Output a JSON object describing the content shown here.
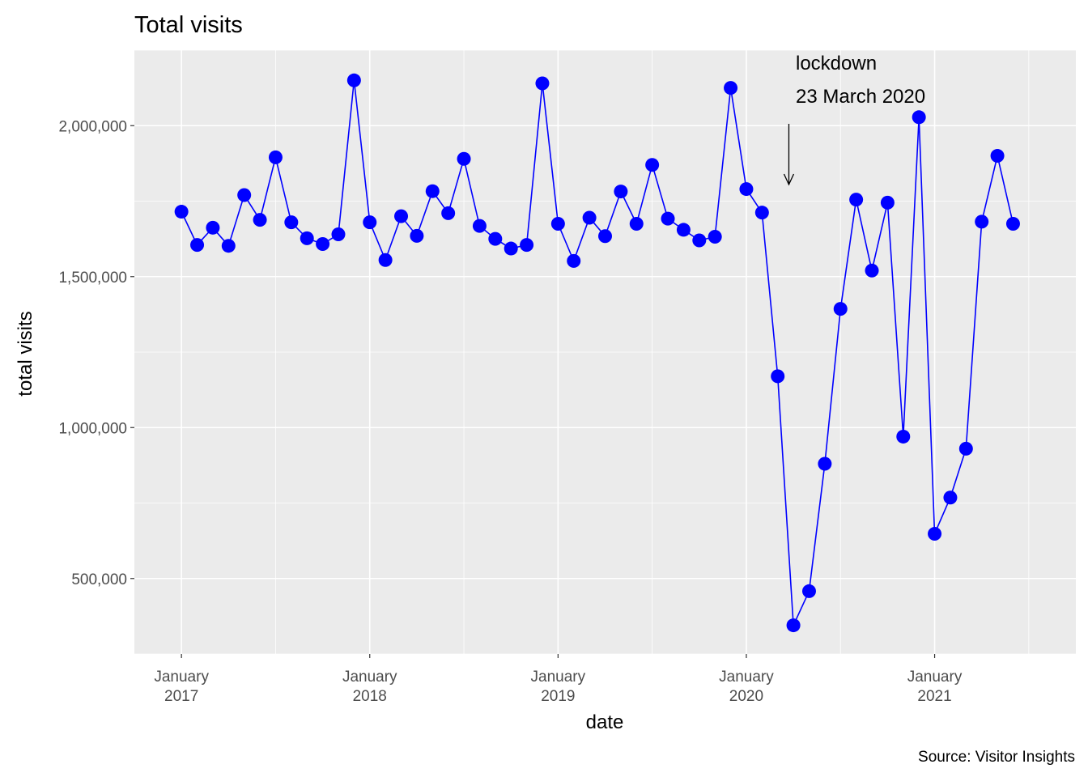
{
  "chart_data": {
    "type": "line",
    "title": "Total visits",
    "xlabel": "date",
    "ylabel": "total visits",
    "caption": "Source: Visitor Insights",
    "x_ticks": [
      {
        "line1": "January",
        "line2": "2017",
        "date": "2017-01"
      },
      {
        "line1": "January",
        "line2": "2018",
        "date": "2018-01"
      },
      {
        "line1": "January",
        "line2": "2019",
        "date": "2019-01"
      },
      {
        "line1": "January",
        "line2": "2020",
        "date": "2020-01"
      },
      {
        "line1": "January",
        "line2": "2021",
        "date": "2021-01"
      }
    ],
    "y_ticks": [
      {
        "value": 500000,
        "label": "500,000"
      },
      {
        "value": 1000000,
        "label": "1,000,000"
      },
      {
        "value": 1500000,
        "label": "1,500,000"
      },
      {
        "value": 2000000,
        "label": "2,000,000"
      }
    ],
    "ylim": [
      250000,
      2250000
    ],
    "xlim": [
      "2016-10",
      "2021-10"
    ],
    "grid": true,
    "annotation": {
      "line1": "lockdown",
      "line2": "23 March 2020",
      "date": "2020-03-23"
    },
    "series": [
      {
        "color": "#0000ff",
        "x": [
          "2017-01",
          "2017-02",
          "2017-03",
          "2017-04",
          "2017-05",
          "2017-06",
          "2017-07",
          "2017-08",
          "2017-09",
          "2017-10",
          "2017-11",
          "2017-12",
          "2018-01",
          "2018-02",
          "2018-03",
          "2018-04",
          "2018-05",
          "2018-06",
          "2018-07",
          "2018-08",
          "2018-09",
          "2018-10",
          "2018-11",
          "2018-12",
          "2019-01",
          "2019-02",
          "2019-03",
          "2019-04",
          "2019-05",
          "2019-06",
          "2019-07",
          "2019-08",
          "2019-09",
          "2019-10",
          "2019-11",
          "2019-12",
          "2020-01",
          "2020-02",
          "2020-03",
          "2020-04",
          "2020-05",
          "2020-06",
          "2020-07",
          "2020-08",
          "2020-09",
          "2020-10",
          "2020-11",
          "2020-12",
          "2021-01",
          "2021-02",
          "2021-03",
          "2021-04",
          "2021-05",
          "2021-06"
        ],
        "y": [
          1715000,
          1605000,
          1662000,
          1602000,
          1770000,
          1688000,
          1895000,
          1680000,
          1627000,
          1608000,
          1640000,
          2150000,
          1680000,
          1555000,
          1700000,
          1635000,
          1783000,
          1710000,
          1890000,
          1668000,
          1625000,
          1593000,
          1605000,
          2140000,
          1675000,
          1552000,
          1695000,
          1634000,
          1782000,
          1675000,
          1870000,
          1692000,
          1655000,
          1620000,
          1632000,
          2125000,
          1790000,
          1712000,
          1170000,
          345000,
          458000,
          880000,
          1393000,
          1755000,
          1520000,
          1745000,
          970000,
          2028000,
          648000,
          768000,
          930000,
          1682000,
          1900000,
          1675000
        ]
      }
    ]
  }
}
